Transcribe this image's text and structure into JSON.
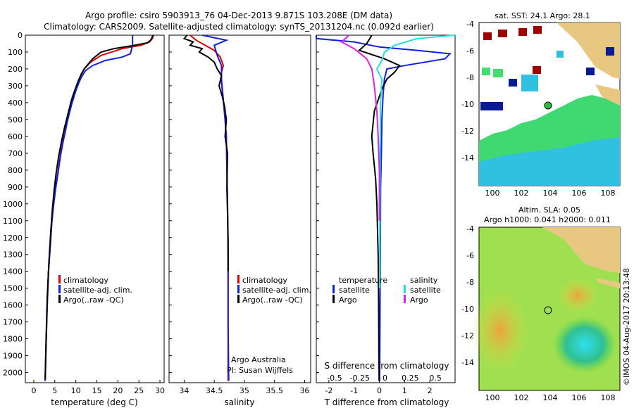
{
  "header": {
    "line1": "Argo profile: csiro 5903913_76 04-Dec-2013 9.871S 103.208E (DM data)",
    "line2": "Climatology: CARS2009. Satellite-adjusted climatology: synTS_20131204.nc (0.092d earlier)"
  },
  "colors": {
    "climatology": "#e00000",
    "satellite": "#1020e0",
    "argo": "#000000",
    "salinity_sat": "#20e0e0",
    "salinity_argo": "#e020e0"
  },
  "chart_data": [
    {
      "type": "line",
      "name": "temperature-profile",
      "xlabel": "temperature (deg C)",
      "ylabel": "",
      "xlim": [
        -2,
        31
      ],
      "ylim": [
        2060,
        0
      ],
      "xticks": [
        0,
        5,
        10,
        15,
        20,
        25,
        30
      ],
      "yticks": [
        0,
        100,
        200,
        300,
        400,
        500,
        600,
        700,
        800,
        900,
        1000,
        1100,
        1200,
        1300,
        1400,
        1500,
        1600,
        1700,
        1800,
        1900,
        2000
      ],
      "legend": [
        "climatology",
        "satellite-adj. clim.",
        "Argo(..raw -QC)"
      ],
      "series": [
        {
          "name": "climatology",
          "color": "#e00000",
          "x": [
            28.5,
            28.2,
            27.5,
            25.5,
            21,
            16,
            13.5,
            12,
            11.2,
            10.6,
            10,
            9.5,
            9,
            8.5,
            8,
            7.6,
            7,
            6.4,
            5.8,
            5.2,
            4.7,
            4.3,
            3.9,
            3.5,
            3.2,
            2.9,
            2.7
          ],
          "y": [
            0,
            20,
            40,
            60,
            80,
            120,
            160,
            200,
            240,
            280,
            320,
            360,
            400,
            450,
            500,
            550,
            620,
            700,
            800,
            900,
            1000,
            1100,
            1250,
            1400,
            1600,
            1850,
            2050
          ]
        },
        {
          "name": "satellite-adj. clim.",
          "color": "#1020e0",
          "x": [
            23.5,
            23.5,
            23.5,
            23,
            21,
            17,
            14,
            12.3,
            11.3,
            10.6,
            10,
            9.5,
            9,
            8.5,
            8,
            7.6,
            7,
            6.4,
            5.8,
            5.2,
            4.7,
            4.3,
            3.9,
            3.5,
            3.2,
            2.9,
            2.7
          ],
          "y": [
            0,
            20,
            60,
            110,
            130,
            150,
            180,
            210,
            250,
            290,
            330,
            370,
            410,
            460,
            510,
            560,
            630,
            710,
            810,
            910,
            1010,
            1110,
            1260,
            1410,
            1610,
            1860,
            2050
          ]
        },
        {
          "name": "Argo(..raw -QC)",
          "color": "#000000",
          "x": [
            28.3,
            28.1,
            27.8,
            27,
            24,
            19,
            16,
            15,
            14,
            13,
            12,
            11.3,
            10.6,
            10,
            9.4,
            8.9,
            8.4,
            7.9,
            7.3,
            6.6,
            5.9,
            5.3,
            4.8,
            4.4,
            4,
            3.6,
            3.2,
            2.9,
            2.7
          ],
          "y": [
            0,
            15,
            30,
            45,
            60,
            80,
            100,
            120,
            140,
            170,
            200,
            230,
            270,
            310,
            350,
            390,
            440,
            490,
            550,
            630,
            720,
            820,
            930,
            1040,
            1180,
            1350,
            1560,
            1820,
            2040
          ]
        }
      ]
    },
    {
      "type": "line",
      "name": "salinity-profile",
      "xlabel": "salinity",
      "xlim": [
        33.75,
        36.1
      ],
      "ylim": [
        2060,
        0
      ],
      "xticks": [
        34,
        34.5,
        35,
        35.5,
        36
      ],
      "legend": [
        "climatology",
        "satellite-adj. clim.",
        "Argo(..raw -QC)"
      ],
      "annotation": [
        "Argo Australia",
        "PI: Susan Wijffels"
      ],
      "series": [
        {
          "name": "climatology",
          "color": "#e00000",
          "x": [
            34.1,
            34.2,
            34.35,
            34.5,
            34.6,
            34.65,
            34.62,
            34.62,
            34.64,
            34.66,
            34.68,
            34.7,
            34.71,
            34.72,
            34.73,
            34.73,
            34.73
          ],
          "y": [
            0,
            30,
            60,
            90,
            130,
            180,
            220,
            280,
            350,
            420,
            500,
            600,
            800,
            1000,
            1300,
            1700,
            2050
          ]
        },
        {
          "name": "satellite-adj. clim.",
          "color": "#1020e0",
          "x": [
            34.3,
            34.5,
            34.7,
            34.5,
            34.55,
            34.62,
            34.62,
            34.64,
            34.66,
            34.68,
            34.7,
            34.71,
            34.72,
            34.73,
            34.73,
            34.74
          ],
          "y": [
            0,
            15,
            30,
            60,
            120,
            180,
            260,
            340,
            420,
            500,
            600,
            800,
            1000,
            1300,
            1700,
            2050
          ]
        },
        {
          "name": "Argo(..raw -QC)",
          "color": "#000000",
          "x": [
            34.05,
            34.0,
            34.15,
            34.1,
            34.3,
            34.25,
            34.4,
            34.5,
            34.55,
            34.62,
            34.58,
            34.63,
            34.67,
            34.7,
            34.68,
            34.72,
            34.71,
            34.73,
            34.73
          ],
          "y": [
            0,
            20,
            40,
            60,
            80,
            100,
            130,
            160,
            200,
            240,
            300,
            360,
            420,
            500,
            600,
            700,
            900,
            1200,
            1400
          ]
        }
      ]
    },
    {
      "type": "line",
      "name": "difference-profile",
      "xlabel": "T difference from climatology",
      "xlabel_top": "S difference from climatology",
      "xlim": [
        -2.5,
        3
      ],
      "ylim": [
        2060,
        0
      ],
      "xticks": [
        -2,
        -1,
        0,
        1,
        2
      ],
      "xticks_top": [
        "-0.5",
        "-0.25",
        "0",
        "0.25",
        "0.5"
      ],
      "legend_temperature": [
        "temperature",
        "satellite",
        "Argo"
      ],
      "legend_salinity": [
        "salinity",
        "satellite",
        "Argo"
      ],
      "series": [
        {
          "name": "temperature satellite",
          "color": "#1020e0",
          "x": [
            -3,
            -2.5,
            -1,
            0,
            1.5,
            2.8,
            2.6,
            1,
            0.3,
            0.2,
            0.15,
            0.1,
            0.08,
            0.05,
            0.04,
            0.03,
            0.02,
            0.01
          ],
          "y": [
            0,
            20,
            40,
            70,
            90,
            110,
            140,
            180,
            200,
            260,
            350,
            500,
            700,
            900,
            1200,
            1500,
            1800,
            2050
          ]
        },
        {
          "name": "temperature Argo",
          "color": "#000000",
          "x": [
            -0.3,
            -0.5,
            -0.8,
            0.2,
            0.8,
            0.6,
            0.3,
            0.1,
            -0.2,
            -0.3,
            -0.25,
            -0.15,
            -0.1,
            -0.05,
            -0.03,
            -0.02,
            -0.01
          ],
          "y": [
            0,
            50,
            90,
            140,
            180,
            220,
            260,
            320,
            450,
            600,
            700,
            850,
            1000,
            1300,
            1600,
            1850,
            2050
          ]
        },
        {
          "name": "salinity satellite",
          "color": "#20e0e0",
          "x": [
            3,
            1.5,
            0.6,
            0.2,
            0.1,
            -0.1,
            0.1,
            0.05,
            0.03,
            0.02,
            0.01
          ],
          "y": [
            0,
            20,
            60,
            100,
            150,
            200,
            260,
            400,
            700,
            1100,
            1500
          ]
        },
        {
          "name": "salinity Argo",
          "color": "#e020e0",
          "x": [
            -1.2,
            -1.5,
            -1,
            -0.5,
            -0.3,
            -0.2,
            -0.1,
            -0.05,
            0,
            0.0
          ],
          "y": [
            0,
            40,
            80,
            140,
            200,
            300,
            450,
            600,
            800,
            1100
          ]
        }
      ]
    }
  ],
  "maps": {
    "sst": {
      "title": "sat. SST: 24.1  Argo: 28.1",
      "xticks": [
        "100",
        "102",
        "104",
        "106",
        "108"
      ],
      "yticks": [
        "-4",
        "-6",
        "-8",
        "-10",
        "-12",
        "-14"
      ]
    },
    "sla": {
      "title_line1": "Altim. SLA: 0.05",
      "title_line2": "Argo h1000: 0.041 h2000: 0.011",
      "xticks": [
        "100",
        "102",
        "104",
        "106",
        "108"
      ],
      "yticks": [
        "-4",
        "-6",
        "-8",
        "-10",
        "-12",
        "-14"
      ]
    }
  },
  "footer": {
    "credit": "©IMOS 04-Aug-2017 20:13:48"
  }
}
